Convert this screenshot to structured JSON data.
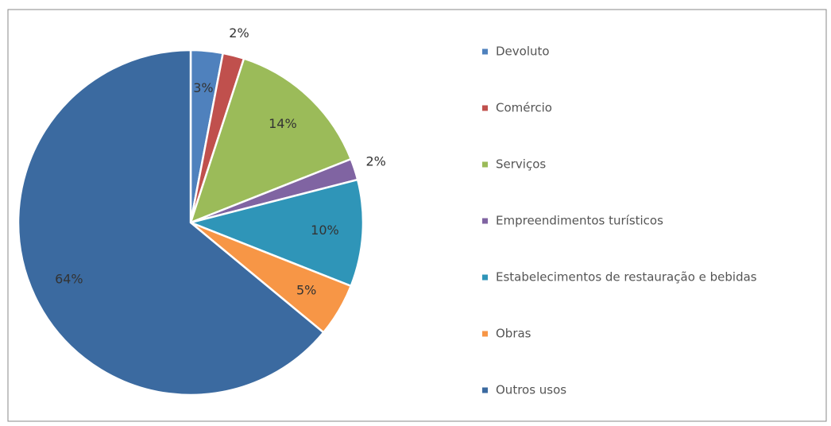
{
  "chart_data": {
    "type": "pie",
    "categories": [
      "Devoluto",
      "Comércio",
      "Serviços",
      "Empreendimentos turísticos",
      "Estabelecimentos de restauração e bebidas",
      "Obras",
      "Outros usos"
    ],
    "values": [
      3,
      2,
      14,
      2,
      10,
      5,
      64
    ],
    "value_labels": [
      "3%",
      "2%",
      "14%",
      "2%",
      "10%",
      "5%",
      "64%"
    ],
    "colors": [
      "#4f81bd",
      "#c0504d",
      "#9bbb59",
      "#8064a2",
      "#2f95b8",
      "#f79646",
      "#3b6aa0"
    ],
    "legend": "right"
  }
}
